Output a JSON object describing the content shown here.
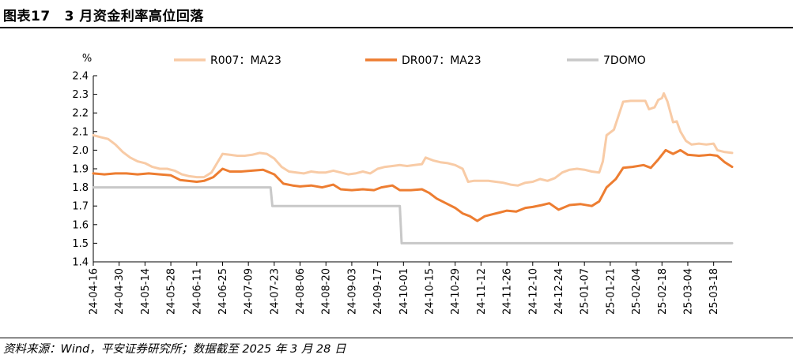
{
  "header": {
    "figure_no": "图表17",
    "title": "3 月资金利率高位回落"
  },
  "footer": {
    "source": "资料来源：Wind，平安证券研究所；数据截至 2025 年 3 月 28 日"
  },
  "chart_data": {
    "type": "line",
    "ylabel": "%",
    "ylim": [
      1.4,
      2.4
    ],
    "yticks": [
      "1.4",
      "1.5",
      "1.6",
      "1.7",
      "1.8",
      "1.9",
      "2.0",
      "2.1",
      "2.2",
      "2.3",
      "2.4"
    ],
    "x_range": [
      "2024-04-16",
      "2025-03-28"
    ],
    "xticks": [
      "24-04-16",
      "24-04-30",
      "24-05-14",
      "24-05-28",
      "24-06-11",
      "24-06-25",
      "24-07-09",
      "24-07-23",
      "24-08-06",
      "24-08-20",
      "24-09-03",
      "24-09-17",
      "24-10-01",
      "24-10-15",
      "24-10-29",
      "24-11-12",
      "24-11-26",
      "24-12-10",
      "24-12-24",
      "25-01-07",
      "25-01-21",
      "25-02-04",
      "25-02-18",
      "25-03-04",
      "25-03-18"
    ],
    "legend_position": "top",
    "grid": false,
    "series": [
      {
        "name": "R007：MA23",
        "color": "#f8cba6",
        "points": [
          [
            "2024-04-16",
            2.08
          ],
          [
            "2024-04-20",
            2.07
          ],
          [
            "2024-04-24",
            2.06
          ],
          [
            "2024-04-28",
            2.03
          ],
          [
            "2024-05-02",
            1.99
          ],
          [
            "2024-05-06",
            1.96
          ],
          [
            "2024-05-10",
            1.94
          ],
          [
            "2024-05-14",
            1.93
          ],
          [
            "2024-05-18",
            1.91
          ],
          [
            "2024-05-22",
            1.9
          ],
          [
            "2024-05-26",
            1.9
          ],
          [
            "2024-05-30",
            1.89
          ],
          [
            "2024-06-03",
            1.87
          ],
          [
            "2024-06-07",
            1.86
          ],
          [
            "2024-06-11",
            1.855
          ],
          [
            "2024-06-15",
            1.855
          ],
          [
            "2024-06-19",
            1.88
          ],
          [
            "2024-06-22",
            1.93
          ],
          [
            "2024-06-25",
            1.98
          ],
          [
            "2024-06-29",
            1.975
          ],
          [
            "2024-07-03",
            1.97
          ],
          [
            "2024-07-07",
            1.97
          ],
          [
            "2024-07-11",
            1.975
          ],
          [
            "2024-07-15",
            1.985
          ],
          [
            "2024-07-19",
            1.98
          ],
          [
            "2024-07-23",
            1.955
          ],
          [
            "2024-07-27",
            1.91
          ],
          [
            "2024-07-31",
            1.885
          ],
          [
            "2024-08-04",
            1.88
          ],
          [
            "2024-08-08",
            1.875
          ],
          [
            "2024-08-12",
            1.885
          ],
          [
            "2024-08-16",
            1.88
          ],
          [
            "2024-08-20",
            1.88
          ],
          [
            "2024-08-24",
            1.89
          ],
          [
            "2024-08-28",
            1.88
          ],
          [
            "2024-09-01",
            1.87
          ],
          [
            "2024-09-05",
            1.875
          ],
          [
            "2024-09-09",
            1.885
          ],
          [
            "2024-09-13",
            1.875
          ],
          [
            "2024-09-17",
            1.9
          ],
          [
            "2024-09-21",
            1.91
          ],
          [
            "2024-09-25",
            1.915
          ],
          [
            "2024-09-29",
            1.92
          ],
          [
            "2024-10-03",
            1.915
          ],
          [
            "2024-10-07",
            1.92
          ],
          [
            "2024-10-11",
            1.925
          ],
          [
            "2024-10-13",
            1.96
          ],
          [
            "2024-10-17",
            1.945
          ],
          [
            "2024-10-21",
            1.935
          ],
          [
            "2024-10-25",
            1.93
          ],
          [
            "2024-10-29",
            1.92
          ],
          [
            "2024-11-02",
            1.9
          ],
          [
            "2024-11-05",
            1.83
          ],
          [
            "2024-11-08",
            1.835
          ],
          [
            "2024-11-12",
            1.835
          ],
          [
            "2024-11-16",
            1.835
          ],
          [
            "2024-11-20",
            1.83
          ],
          [
            "2024-11-24",
            1.825
          ],
          [
            "2024-11-28",
            1.815
          ],
          [
            "2024-12-02",
            1.81
          ],
          [
            "2024-12-06",
            1.825
          ],
          [
            "2024-12-10",
            1.83
          ],
          [
            "2024-12-14",
            1.845
          ],
          [
            "2024-12-18",
            1.835
          ],
          [
            "2024-12-22",
            1.85
          ],
          [
            "2024-12-26",
            1.88
          ],
          [
            "2024-12-30",
            1.895
          ],
          [
            "2025-01-03",
            1.9
          ],
          [
            "2025-01-07",
            1.895
          ],
          [
            "2025-01-11",
            1.885
          ],
          [
            "2025-01-15",
            1.88
          ],
          [
            "2025-01-17",
            1.94
          ],
          [
            "2025-01-19",
            2.08
          ],
          [
            "2025-01-23",
            2.11
          ],
          [
            "2025-01-26",
            2.2
          ],
          [
            "2025-01-28",
            2.26
          ],
          [
            "2025-02-01",
            2.265
          ],
          [
            "2025-02-05",
            2.265
          ],
          [
            "2025-02-09",
            2.265
          ],
          [
            "2025-02-11",
            2.22
          ],
          [
            "2025-02-14",
            2.23
          ],
          [
            "2025-02-16",
            2.27
          ],
          [
            "2025-02-18",
            2.28
          ],
          [
            "2025-02-19",
            2.305
          ],
          [
            "2025-02-21",
            2.26
          ],
          [
            "2025-02-24",
            2.15
          ],
          [
            "2025-02-26",
            2.155
          ],
          [
            "2025-02-28",
            2.1
          ],
          [
            "2025-03-03",
            2.05
          ],
          [
            "2025-03-06",
            2.03
          ],
          [
            "2025-03-10",
            2.035
          ],
          [
            "2025-03-14",
            2.03
          ],
          [
            "2025-03-18",
            2.035
          ],
          [
            "2025-03-20",
            2.0
          ],
          [
            "2025-03-24",
            1.99
          ],
          [
            "2025-03-28",
            1.985
          ]
        ]
      },
      {
        "name": "DR007：MA23",
        "color": "#ed7d31",
        "points": [
          [
            "2024-04-16",
            1.875
          ],
          [
            "2024-04-22",
            1.87
          ],
          [
            "2024-04-28",
            1.875
          ],
          [
            "2024-05-04",
            1.875
          ],
          [
            "2024-05-10",
            1.87
          ],
          [
            "2024-05-16",
            1.875
          ],
          [
            "2024-05-22",
            1.87
          ],
          [
            "2024-05-28",
            1.865
          ],
          [
            "2024-06-02",
            1.84
          ],
          [
            "2024-06-06",
            1.835
          ],
          [
            "2024-06-11",
            1.83
          ],
          [
            "2024-06-15",
            1.835
          ],
          [
            "2024-06-20",
            1.855
          ],
          [
            "2024-06-25",
            1.9
          ],
          [
            "2024-06-29",
            1.885
          ],
          [
            "2024-07-05",
            1.885
          ],
          [
            "2024-07-11",
            1.89
          ],
          [
            "2024-07-17",
            1.895
          ],
          [
            "2024-07-23",
            1.87
          ],
          [
            "2024-07-28",
            1.82
          ],
          [
            "2024-08-02",
            1.81
          ],
          [
            "2024-08-06",
            1.805
          ],
          [
            "2024-08-12",
            1.81
          ],
          [
            "2024-08-18",
            1.8
          ],
          [
            "2024-08-24",
            1.815
          ],
          [
            "2024-08-28",
            1.79
          ],
          [
            "2024-09-03",
            1.785
          ],
          [
            "2024-09-09",
            1.79
          ],
          [
            "2024-09-15",
            1.785
          ],
          [
            "2024-09-19",
            1.8
          ],
          [
            "2024-09-25",
            1.81
          ],
          [
            "2024-09-29",
            1.785
          ],
          [
            "2024-10-05",
            1.785
          ],
          [
            "2024-10-11",
            1.79
          ],
          [
            "2024-10-15",
            1.77
          ],
          [
            "2024-10-19",
            1.74
          ],
          [
            "2024-10-24",
            1.715
          ],
          [
            "2024-10-29",
            1.69
          ],
          [
            "2024-11-02",
            1.66
          ],
          [
            "2024-11-06",
            1.645
          ],
          [
            "2024-11-10",
            1.62
          ],
          [
            "2024-11-14",
            1.645
          ],
          [
            "2024-11-18",
            1.655
          ],
          [
            "2024-11-22",
            1.665
          ],
          [
            "2024-11-26",
            1.675
          ],
          [
            "2024-12-01",
            1.67
          ],
          [
            "2024-12-06",
            1.69
          ],
          [
            "2024-12-10",
            1.695
          ],
          [
            "2024-12-15",
            1.705
          ],
          [
            "2024-12-19",
            1.715
          ],
          [
            "2024-12-24",
            1.68
          ],
          [
            "2024-12-30",
            1.705
          ],
          [
            "2025-01-05",
            1.71
          ],
          [
            "2025-01-11",
            1.7
          ],
          [
            "2025-01-15",
            1.725
          ],
          [
            "2025-01-19",
            1.8
          ],
          [
            "2025-01-24",
            1.845
          ],
          [
            "2025-01-28",
            1.905
          ],
          [
            "2025-02-02",
            1.91
          ],
          [
            "2025-02-08",
            1.92
          ],
          [
            "2025-02-12",
            1.905
          ],
          [
            "2025-02-16",
            1.95
          ],
          [
            "2025-02-20",
            2.0
          ],
          [
            "2025-02-24",
            1.98
          ],
          [
            "2025-02-28",
            2.0
          ],
          [
            "2025-03-04",
            1.975
          ],
          [
            "2025-03-10",
            1.97
          ],
          [
            "2025-03-16",
            1.975
          ],
          [
            "2025-03-20",
            1.97
          ],
          [
            "2025-03-24",
            1.935
          ],
          [
            "2025-03-28",
            1.91
          ]
        ]
      },
      {
        "name": "7DOMO",
        "color": "#c8c8c8",
        "points": [
          [
            "2024-04-16",
            1.8
          ],
          [
            "2024-07-21",
            1.8
          ],
          [
            "2024-07-22",
            1.7
          ],
          [
            "2024-09-29",
            1.7
          ],
          [
            "2024-09-30",
            1.5
          ],
          [
            "2025-03-28",
            1.5
          ]
        ]
      }
    ]
  }
}
